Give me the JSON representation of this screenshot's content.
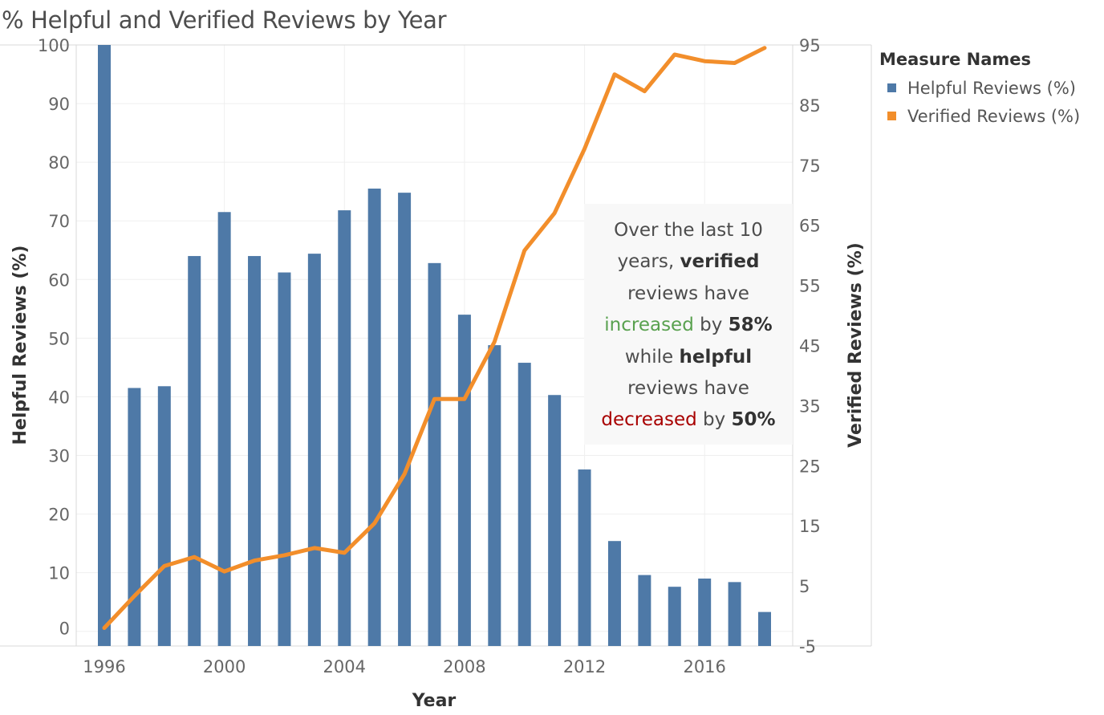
{
  "title": "% Helpful and Verified Reviews by Year",
  "colors": {
    "helpful": "#4e79a7",
    "verified": "#f28e2b",
    "increased": "#59a14f",
    "decreased": "#a80000"
  },
  "legend": {
    "title": "Measure Names",
    "items": [
      {
        "label": "Helpful Reviews (%)",
        "color": "#4e79a7"
      },
      {
        "label": "Verified Reviews (%)",
        "color": "#f28e2b"
      }
    ]
  },
  "annotation": {
    "line1": "Over the last 10",
    "line2_pre": "years, ",
    "line2_bold": "verified",
    "line3": "reviews have",
    "line4_colored": "increased",
    "line4_mid": " by ",
    "line4_bold": "58%",
    "line5_pre": "while ",
    "line5_bold": "helpful",
    "line6": "reviews have",
    "line7_colored": "decreased",
    "line7_mid": " by ",
    "line7_bold": "50%"
  },
  "chart_data": {
    "type": "bar",
    "title": "% Helpful and Verified Reviews by Year",
    "xlabel": "Year",
    "ylabel": "Helpful Reviews (%)",
    "y2label": "Verified Reviews (%)",
    "x": [
      1996,
      1997,
      1998,
      1999,
      2000,
      2001,
      2002,
      2003,
      2004,
      2005,
      2006,
      2007,
      2008,
      2009,
      2010,
      2011,
      2012,
      2013,
      2014,
      2015,
      2016,
      2017,
      2018
    ],
    "x_ticks": [
      "1996",
      "2000",
      "2004",
      "2008",
      "2012",
      "2016"
    ],
    "series": [
      {
        "name": "Helpful Reviews (%)",
        "type": "bar",
        "axis": "left",
        "values": [
          100,
          41.5,
          41.8,
          64,
          71.5,
          64,
          61.2,
          64.4,
          71.8,
          75.5,
          74.8,
          62.8,
          54,
          48.8,
          45.8,
          40.3,
          27.6,
          15.4,
          9.6,
          7.6,
          9,
          8.4,
          3.3
        ]
      },
      {
        "name": "Verified Reviews (%)",
        "type": "line",
        "axis": "right",
        "values": [
          -2,
          3.3,
          8.3,
          9.8,
          7.4,
          9.2,
          10.1,
          11.3,
          10.5,
          15.4,
          23.6,
          36.1,
          36.1,
          45.6,
          60.8,
          67,
          77.7,
          90.1,
          87.3,
          93.4,
          92.3,
          92,
          94.5
        ]
      }
    ],
    "ylim": [
      -2.5,
      100
    ],
    "y_ticks": [
      0,
      10,
      20,
      30,
      40,
      50,
      60,
      70,
      80,
      90,
      100
    ],
    "y2lim": [
      -5,
      95
    ],
    "y2_ticks": [
      -5,
      5,
      15,
      25,
      35,
      45,
      55,
      65,
      75,
      85,
      95
    ],
    "grid": true,
    "legend_position": "right"
  }
}
